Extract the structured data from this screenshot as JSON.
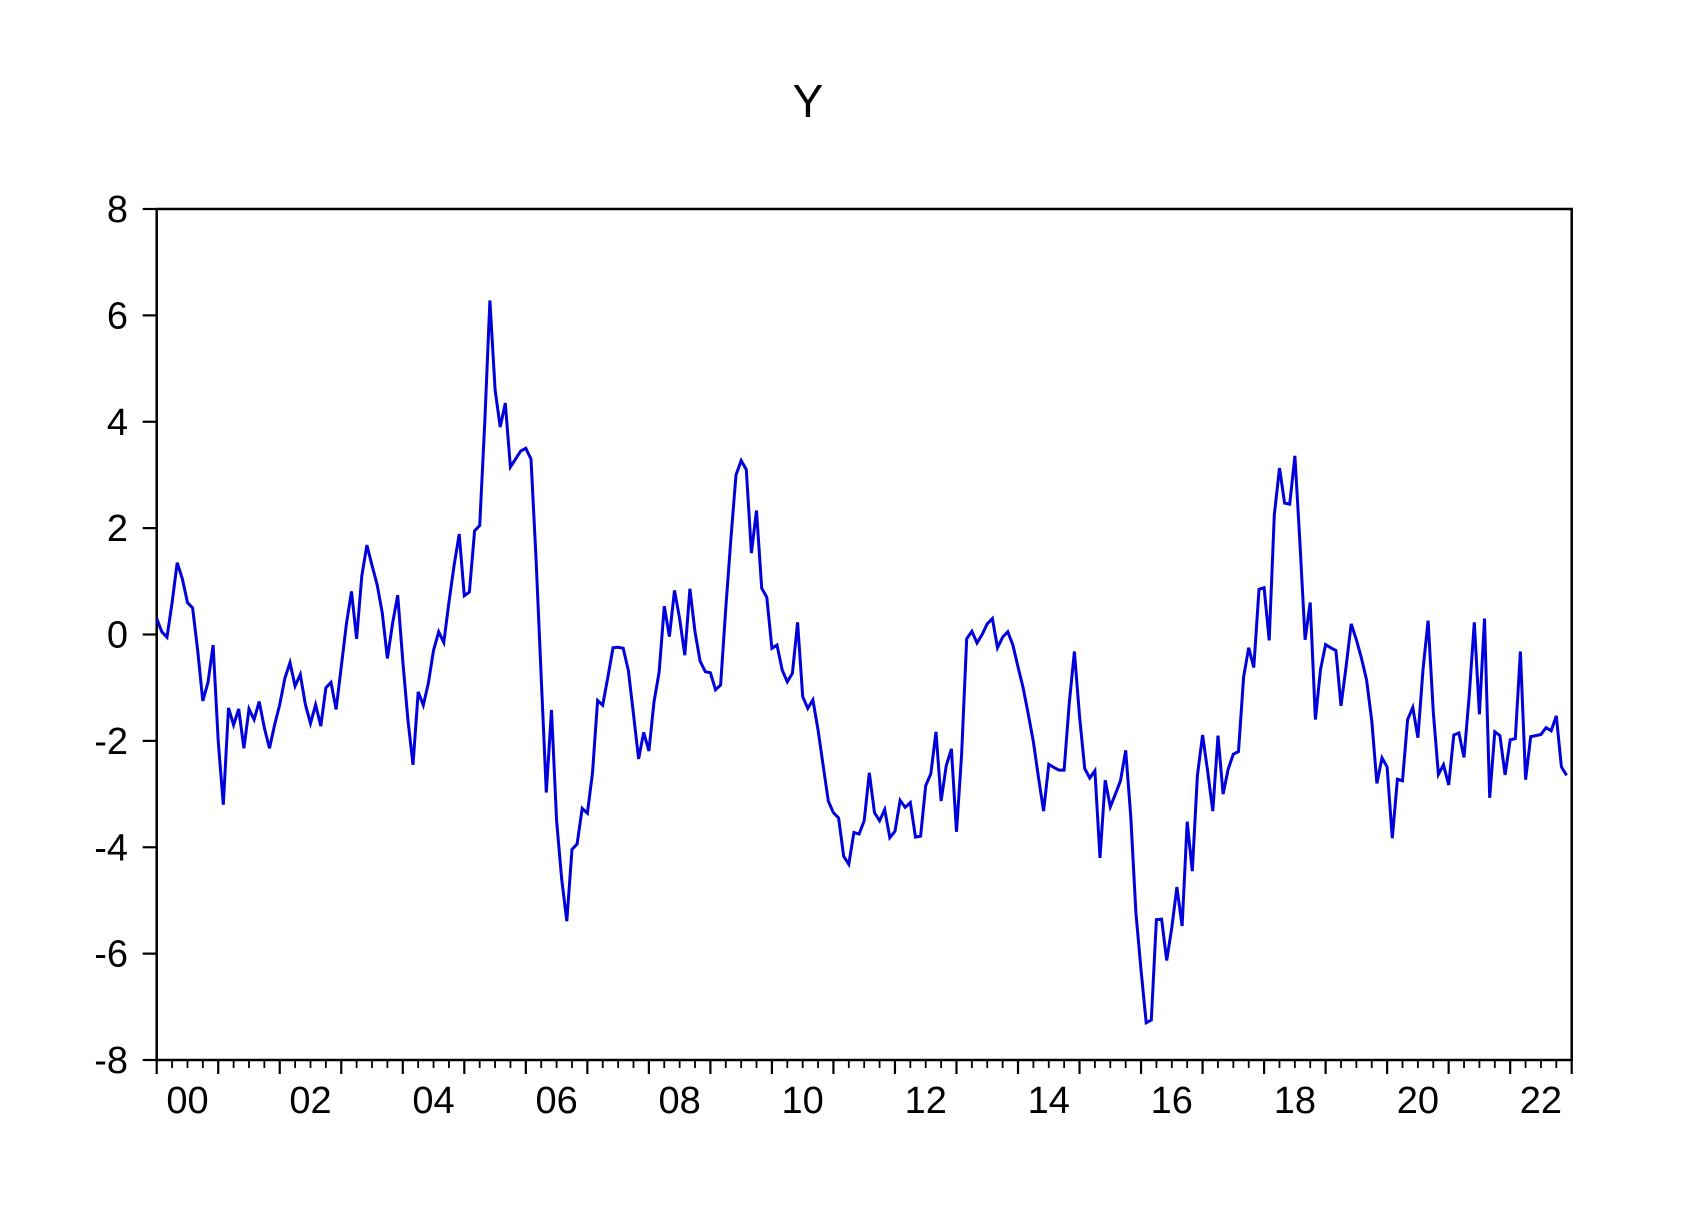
{
  "title": "Y",
  "chart_data": {
    "type": "line",
    "series_name": "Y",
    "line_color": "#0000dd",
    "axis_color": "#000000",
    "background_color": "#ffffff",
    "frequency": "monthly",
    "start_period": "2000M01",
    "end_period": "2022M12",
    "x_start_year": 2000,
    "x_end_year": 2023,
    "x_tick_labels": [
      "00",
      "02",
      "04",
      "06",
      "08",
      "10",
      "12",
      "14",
      "16",
      "18",
      "20",
      "22"
    ],
    "y_ticks": [
      -8,
      -6,
      -4,
      -2,
      0,
      2,
      4,
      6,
      8
    ],
    "ylim": [
      -8,
      8
    ],
    "grid": "off",
    "legend": "none",
    "values": [
      0.3,
      0.05,
      -0.05,
      0.6,
      1.35,
      1.05,
      0.6,
      0.5,
      -0.3,
      -1.25,
      -0.9,
      -0.2,
      -2.0,
      -3.2,
      -1.38,
      -1.7,
      -1.4,
      -2.14,
      -1.4,
      -1.6,
      -1.26,
      -1.76,
      -2.14,
      -1.7,
      -1.32,
      -0.82,
      -0.53,
      -0.97,
      -0.75,
      -1.32,
      -1.67,
      -1.32,
      -1.72,
      -1.0,
      -0.9,
      -1.41,
      -0.6,
      0.2,
      0.81,
      -0.08,
      1.1,
      1.68,
      1.3,
      0.93,
      0.4,
      -0.45,
      0.2,
      0.74,
      -0.5,
      -1.6,
      -2.45,
      -1.08,
      -1.33,
      -0.91,
      -0.3,
      0.05,
      -0.15,
      0.6,
      1.3,
      1.89,
      0.73,
      0.8,
      1.95,
      2.05,
      4.0,
      6.28,
      4.6,
      3.9,
      4.35,
      3.15,
      3.3,
      3.45,
      3.5,
      3.3,
      1.4,
      -0.8,
      -2.97,
      -1.42,
      -3.5,
      -4.6,
      -5.39,
      -4.04,
      -3.94,
      -3.27,
      -3.36,
      -2.6,
      -1.24,
      -1.33,
      -0.8,
      -0.25,
      -0.24,
      -0.26,
      -0.68,
      -1.5,
      -2.34,
      -1.84,
      -2.19,
      -1.27,
      -0.71,
      0.53,
      -0.04,
      0.83,
      0.3,
      -0.39,
      0.86,
      0.05,
      -0.5,
      -0.7,
      -0.72,
      -1.04,
      -0.95,
      0.5,
      1.8,
      3.0,
      3.27,
      3.1,
      1.53,
      2.33,
      0.87,
      0.7,
      -0.26,
      -0.2,
      -0.67,
      -0.89,
      -0.73,
      0.23,
      -1.17,
      -1.39,
      -1.23,
      -1.8,
      -2.47,
      -3.13,
      -3.35,
      -3.45,
      -4.17,
      -4.32,
      -3.72,
      -3.75,
      -3.5,
      -2.6,
      -3.35,
      -3.5,
      -3.29,
      -3.82,
      -3.7,
      -3.12,
      -3.25,
      -3.16,
      -3.81,
      -3.79,
      -2.84,
      -2.62,
      -1.83,
      -3.13,
      -2.47,
      -2.15,
      -3.71,
      -2.26,
      -0.08,
      0.06,
      -0.16,
      0.0,
      0.2,
      0.3,
      -0.25,
      -0.05,
      0.05,
      -0.2,
      -0.61,
      -1.0,
      -1.5,
      -2.02,
      -2.69,
      -3.32,
      -2.44,
      -2.5,
      -2.55,
      -2.55,
      -1.28,
      -0.32,
      -1.53,
      -2.52,
      -2.7,
      -2.56,
      -4.2,
      -2.74,
      -3.24,
      -3.0,
      -2.75,
      -2.18,
      -3.43,
      -5.23,
      -6.3,
      -7.3,
      -7.25,
      -5.36,
      -5.35,
      -6.13,
      -5.51,
      -4.75,
      -5.48,
      -3.52,
      -4.45,
      -2.65,
      -1.89,
      -2.58,
      -3.32,
      -1.9,
      -3.0,
      -2.53,
      -2.25,
      -2.2,
      -0.8,
      -0.25,
      -0.62,
      0.85,
      0.88,
      -0.11,
      2.25,
      3.13,
      2.47,
      2.45,
      3.36,
      1.7,
      -0.1,
      0.6,
      -1.6,
      -0.66,
      -0.19,
      -0.25,
      -0.3,
      -1.34,
      -0.6,
      0.2,
      -0.1,
      -0.45,
      -0.86,
      -1.63,
      -2.8,
      -2.32,
      -2.49,
      -3.83,
      -2.72,
      -2.75,
      -1.6,
      -1.37,
      -1.94,
      -0.66,
      0.26,
      -1.46,
      -2.63,
      -2.45,
      -2.83,
      -1.89,
      -1.85,
      -2.31,
      -1.15,
      0.23,
      -1.5,
      0.3,
      -3.07,
      -1.83,
      -1.9,
      -2.64,
      -1.98,
      -1.96,
      -0.32,
      -2.73,
      -1.92,
      -1.9,
      -1.88,
      -1.75,
      -1.81,
      -1.53,
      -2.49,
      -2.65
    ]
  }
}
